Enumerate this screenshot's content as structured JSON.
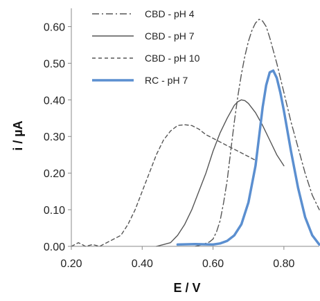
{
  "chart_data": {
    "type": "line",
    "title": "",
    "xlabel": "E / V",
    "ylabel": "i / µA",
    "xlim": [
      0.2,
      0.9
    ],
    "ylim": [
      0.0,
      0.65
    ],
    "x_ticks": [
      0.2,
      0.4,
      0.6,
      0.8
    ],
    "x_tick_labels": [
      "0.20",
      "0.40",
      "0.60",
      "0.80"
    ],
    "y_ticks": [
      0.0,
      0.1,
      0.2,
      0.3,
      0.4,
      0.5,
      0.6
    ],
    "y_tick_labels": [
      "0.00",
      "0.10",
      "0.20",
      "0.30",
      "0.40",
      "0.50",
      "0.60"
    ],
    "grid": false,
    "legend_position": "top-left",
    "series": [
      {
        "name": "CBD - pH 4",
        "color": "#555555",
        "dash": "dashdot",
        "width": 1.4,
        "x": [
          0.55,
          0.57,
          0.59,
          0.6,
          0.61,
          0.62,
          0.63,
          0.64,
          0.65,
          0.66,
          0.67,
          0.68,
          0.69,
          0.7,
          0.71,
          0.72,
          0.73,
          0.74,
          0.75,
          0.76,
          0.78,
          0.8,
          0.82,
          0.84,
          0.86,
          0.88,
          0.9
        ],
        "y": [
          0.0,
          0.005,
          0.012,
          0.02,
          0.04,
          0.07,
          0.12,
          0.18,
          0.26,
          0.34,
          0.41,
          0.47,
          0.52,
          0.56,
          0.59,
          0.61,
          0.62,
          0.615,
          0.6,
          0.57,
          0.5,
          0.42,
          0.34,
          0.27,
          0.2,
          0.14,
          0.1
        ]
      },
      {
        "name": "CBD - pH 7",
        "color": "#555555",
        "dash": "solid",
        "width": 1.4,
        "x": [
          0.44,
          0.46,
          0.48,
          0.5,
          0.52,
          0.54,
          0.56,
          0.58,
          0.6,
          0.62,
          0.64,
          0.66,
          0.67,
          0.68,
          0.69,
          0.7,
          0.72,
          0.74,
          0.76,
          0.78,
          0.8
        ],
        "y": [
          0.0,
          0.005,
          0.01,
          0.03,
          0.06,
          0.1,
          0.15,
          0.2,
          0.26,
          0.31,
          0.35,
          0.385,
          0.395,
          0.4,
          0.398,
          0.39,
          0.365,
          0.33,
          0.29,
          0.25,
          0.22
        ]
      },
      {
        "name": "CBD - pH 10",
        "color": "#555555",
        "dash": "dash",
        "width": 1.4,
        "x": [
          0.2,
          0.22,
          0.24,
          0.26,
          0.28,
          0.3,
          0.32,
          0.34,
          0.36,
          0.38,
          0.4,
          0.42,
          0.44,
          0.46,
          0.48,
          0.5,
          0.52,
          0.54,
          0.56,
          0.58,
          0.6,
          0.62,
          0.64,
          0.66,
          0.68,
          0.7,
          0.72
        ],
        "y": [
          0.0,
          0.01,
          0.0,
          0.005,
          0.0,
          0.01,
          0.02,
          0.03,
          0.06,
          0.1,
          0.15,
          0.2,
          0.25,
          0.29,
          0.315,
          0.33,
          0.332,
          0.33,
          0.32,
          0.305,
          0.295,
          0.285,
          0.275,
          0.265,
          0.255,
          0.245,
          0.235
        ]
      },
      {
        "name": "RC - pH 7",
        "color": "#5b8fd0",
        "dash": "solid",
        "width": 3.5,
        "x": [
          0.5,
          0.55,
          0.6,
          0.62,
          0.64,
          0.66,
          0.68,
          0.7,
          0.72,
          0.73,
          0.74,
          0.75,
          0.76,
          0.77,
          0.78,
          0.79,
          0.8,
          0.82,
          0.84,
          0.86,
          0.88,
          0.9
        ],
        "y": [
          0.005,
          0.006,
          0.005,
          0.008,
          0.015,
          0.03,
          0.06,
          0.12,
          0.22,
          0.3,
          0.38,
          0.44,
          0.475,
          0.48,
          0.46,
          0.42,
          0.37,
          0.26,
          0.16,
          0.08,
          0.03,
          0.005
        ]
      }
    ]
  }
}
